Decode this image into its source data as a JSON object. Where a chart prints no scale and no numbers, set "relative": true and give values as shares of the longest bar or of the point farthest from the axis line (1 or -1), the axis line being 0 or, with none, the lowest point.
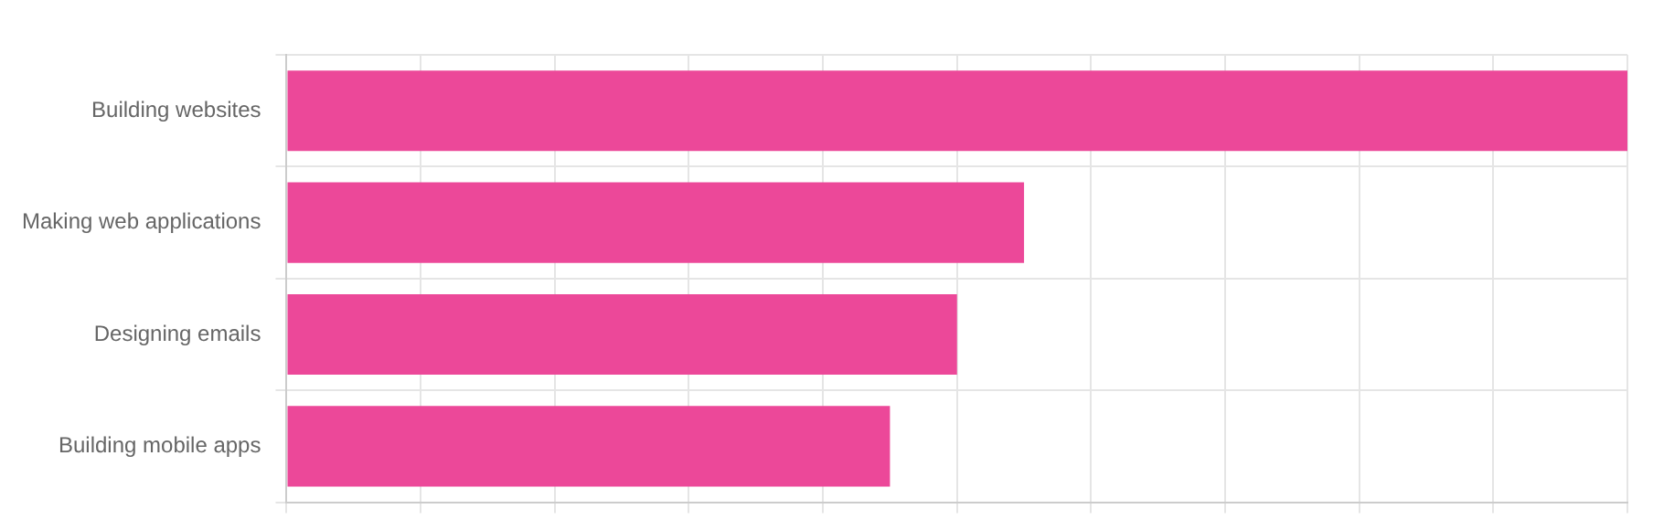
{
  "chart_data": {
    "type": "bar",
    "orientation": "horizontal",
    "relative": true,
    "categories": [
      "Building websites",
      "Making web applications",
      "Designing emails",
      "Building mobile apps"
    ],
    "values": [
      1,
      0.55,
      0.5,
      0.45
    ],
    "color": "#ec4899",
    "grid": true,
    "legend": false
  }
}
